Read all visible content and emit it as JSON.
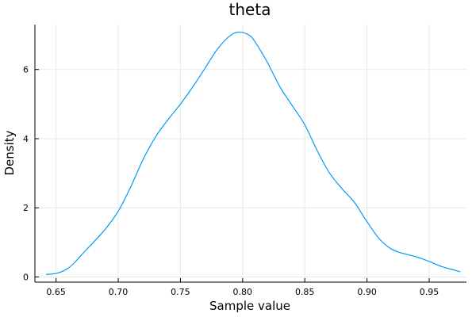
{
  "chart_data": {
    "type": "line",
    "title": "theta",
    "xlabel": "Sample value",
    "ylabel": "Density",
    "xlim": [
      0.633,
      0.98
    ],
    "ylim": [
      -0.15,
      7.3
    ],
    "xticks": [
      0.65,
      0.7,
      0.75,
      0.8,
      0.85,
      0.9,
      0.95
    ],
    "xtick_labels": [
      "0.65",
      "0.70",
      "0.75",
      "0.80",
      "0.85",
      "0.90",
      "0.95"
    ],
    "yticks": [
      0,
      2,
      4,
      6
    ],
    "ytick_labels": [
      "0",
      "2",
      "4",
      "6"
    ],
    "grid": true,
    "series": [
      {
        "color": "#009af9",
        "points": [
          [
            0.642,
            0.07
          ],
          [
            0.65,
            0.1
          ],
          [
            0.655,
            0.16
          ],
          [
            0.66,
            0.26
          ],
          [
            0.665,
            0.42
          ],
          [
            0.67,
            0.62
          ],
          [
            0.68,
            1.0
          ],
          [
            0.69,
            1.4
          ],
          [
            0.7,
            1.9
          ],
          [
            0.71,
            2.6
          ],
          [
            0.72,
            3.4
          ],
          [
            0.73,
            4.05
          ],
          [
            0.74,
            4.55
          ],
          [
            0.75,
            5.0
          ],
          [
            0.76,
            5.5
          ],
          [
            0.77,
            6.05
          ],
          [
            0.78,
            6.6
          ],
          [
            0.79,
            6.98
          ],
          [
            0.797,
            7.08
          ],
          [
            0.805,
            7.0
          ],
          [
            0.81,
            6.8
          ],
          [
            0.82,
            6.2
          ],
          [
            0.83,
            5.5
          ],
          [
            0.84,
            4.95
          ],
          [
            0.85,
            4.4
          ],
          [
            0.86,
            3.65
          ],
          [
            0.87,
            3.0
          ],
          [
            0.88,
            2.55
          ],
          [
            0.89,
            2.15
          ],
          [
            0.9,
            1.6
          ],
          [
            0.91,
            1.1
          ],
          [
            0.92,
            0.8
          ],
          [
            0.93,
            0.67
          ],
          [
            0.94,
            0.58
          ],
          [
            0.95,
            0.45
          ],
          [
            0.96,
            0.3
          ],
          [
            0.97,
            0.2
          ],
          [
            0.975,
            0.15
          ]
        ]
      }
    ]
  }
}
